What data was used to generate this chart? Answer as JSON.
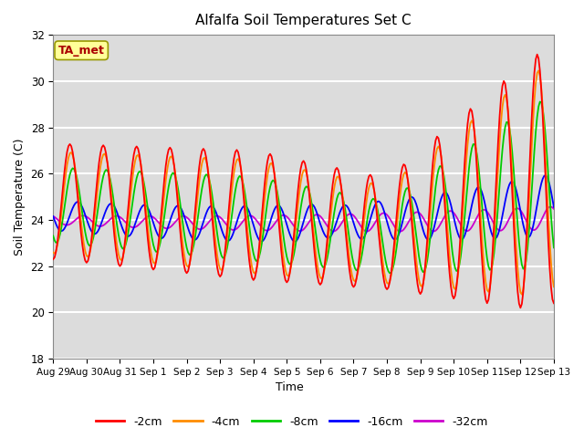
{
  "title": "Alfalfa Soil Temperatures Set C",
  "xlabel": "Time",
  "ylabel": "Soil Temperature (C)",
  "ylim": [
    18,
    32
  ],
  "plot_bg_color": "#dcdcdc",
  "grid_color": "white",
  "series_colors": {
    "-2cm": "#ff0000",
    "-4cm": "#ff8c00",
    "-8cm": "#00cc00",
    "-16cm": "#0000ff",
    "-32cm": "#cc00cc"
  },
  "annotation_text": "TA_met",
  "annotation_color": "#aa0000",
  "annotation_bg": "#ffff99",
  "x_tick_labels": [
    "Aug 29",
    "Aug 30",
    "Aug 31",
    "Sep 1",
    "Sep 2",
    "Sep 3",
    "Sep 4",
    "Sep 5",
    "Sep 6",
    "Sep 7",
    "Sep 8",
    "Sep 9",
    "Sep 10",
    "Sep 11",
    "Sep 12",
    "Sep 13"
  ],
  "yticks": [
    18,
    20,
    22,
    24,
    26,
    28,
    30,
    32
  ]
}
